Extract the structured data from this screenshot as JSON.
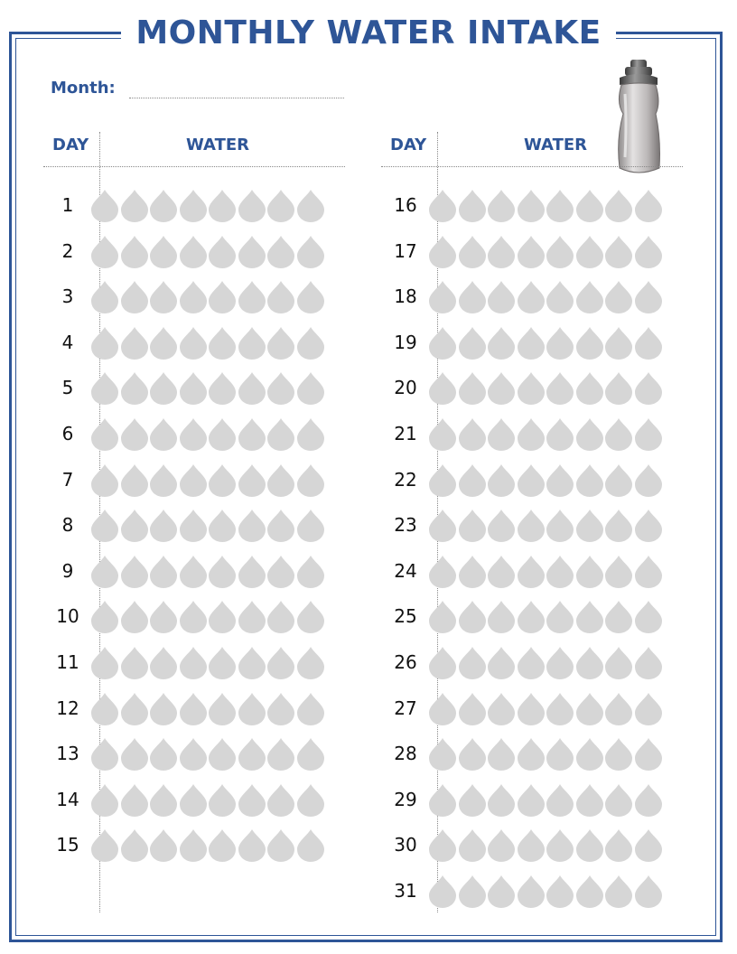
{
  "title": "MONTHLY WATER INTAKE",
  "month_label": "Month:",
  "columns": [
    {
      "day_header": "DAY",
      "water_header": "WATER",
      "days": [
        "1",
        "2",
        "3",
        "4",
        "5",
        "6",
        "7",
        "8",
        "9",
        "10",
        "11",
        "12",
        "13",
        "14",
        "15"
      ]
    },
    {
      "day_header": "DAY",
      "water_header": "WATER",
      "days": [
        "16",
        "17",
        "18",
        "19",
        "20",
        "21",
        "22",
        "23",
        "24",
        "25",
        "26",
        "27",
        "28",
        "29",
        "30",
        "31"
      ]
    }
  ],
  "drops_per_day": 8,
  "colors": {
    "accent": "#2e5597",
    "drop": "#d6d6d6"
  },
  "icons": {
    "bottle": "water-bottle-icon",
    "drop": "water-drop-icon"
  }
}
